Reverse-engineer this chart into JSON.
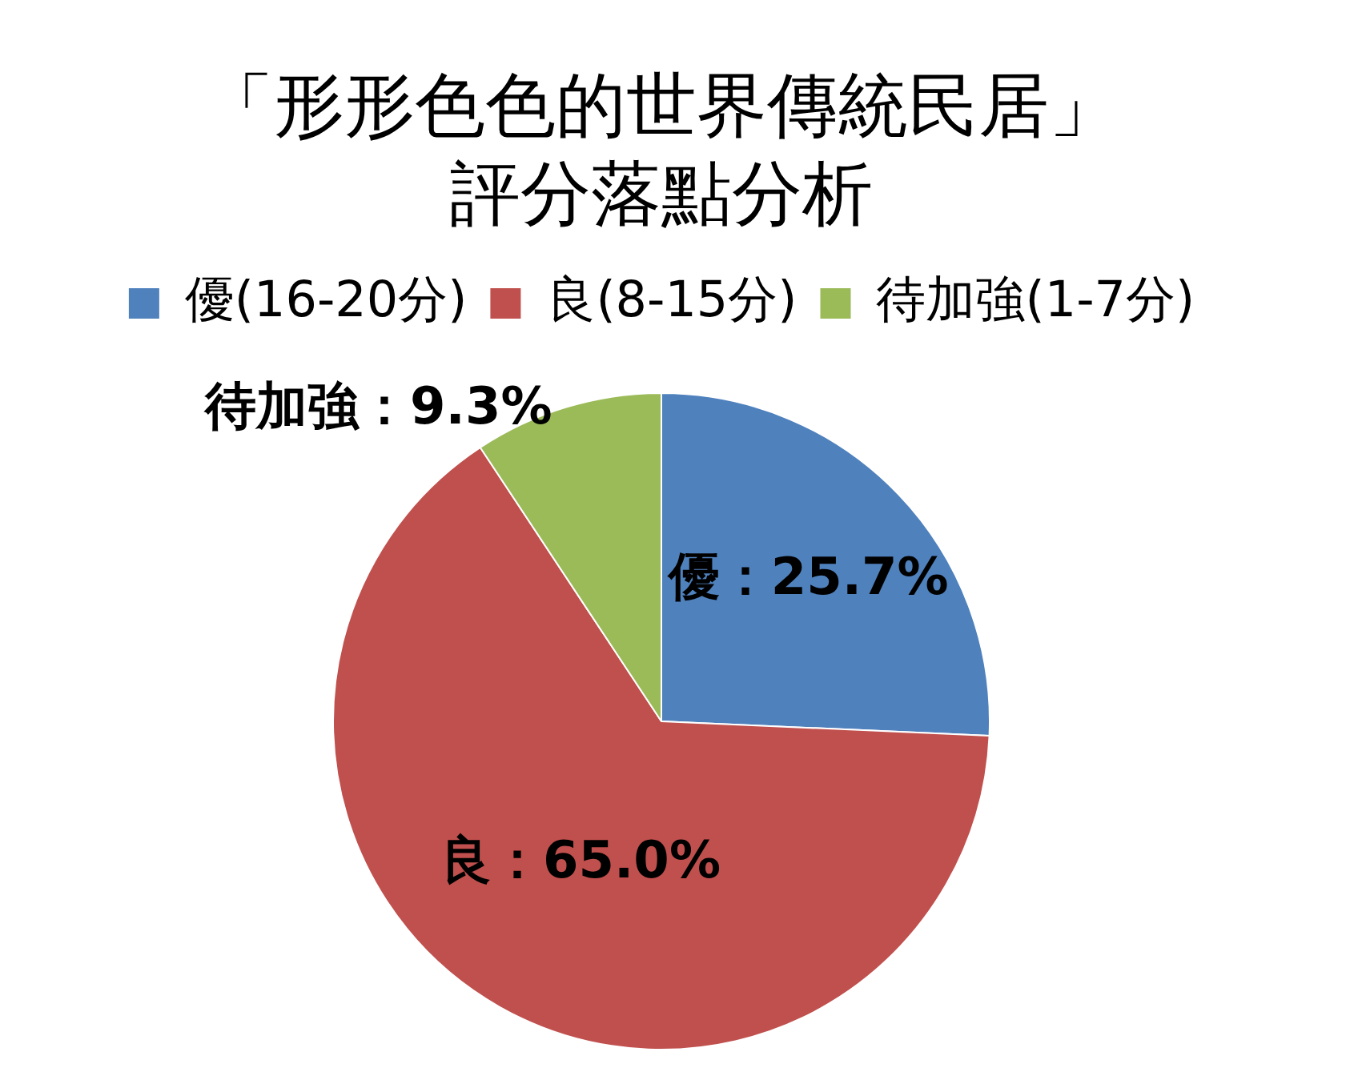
{
  "chart_data": {
    "type": "pie",
    "title": "「形形色色的世界傳統民居」評分落點分析",
    "categories": [
      "優(16-20分)",
      "良(8-15分)",
      "待加強(1-7分)"
    ],
    "values": [
      25.7,
      65.0,
      9.3
    ],
    "colors": [
      "#4f81bd",
      "#c0504d",
      "#9bbb59"
    ],
    "value_labels": [
      "優：25.7%",
      "良：65.0%",
      "待加強：9.3%"
    ],
    "legend": "top"
  }
}
